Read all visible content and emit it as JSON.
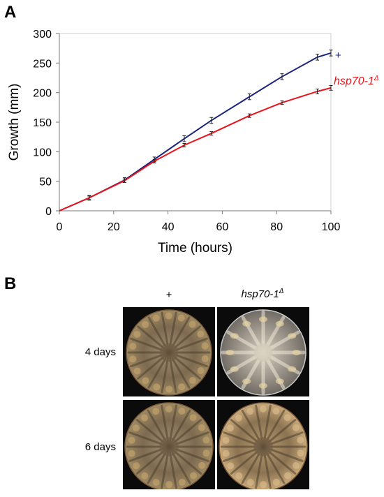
{
  "panels": {
    "a_letter": "A",
    "b_letter": "B"
  },
  "chart_data": {
    "type": "line",
    "title": "",
    "xlabel": "Time (hours)",
    "ylabel": "Growth (mm)",
    "xlim": [
      0,
      100
    ],
    "ylim": [
      0,
      300
    ],
    "xticks": [
      0,
      20,
      40,
      60,
      80,
      100
    ],
    "yticks": [
      0,
      50,
      100,
      150,
      200,
      250,
      300
    ],
    "grid": false,
    "series": [
      {
        "name": "+",
        "color": "#1a237e",
        "x": [
          0,
          11,
          24,
          35,
          46,
          56,
          70,
          82,
          95,
          100
        ],
        "y": [
          0,
          22,
          52,
          87,
          122,
          153,
          193,
          227,
          260,
          267
        ],
        "err": [
          0,
          4,
          4,
          4,
          5,
          5,
          5,
          5,
          5,
          5
        ]
      },
      {
        "name": "hsp70-1",
        "name_suffix": "Δ",
        "color": "#e8141b",
        "x": [
          0,
          11,
          24,
          35,
          46,
          56,
          70,
          82,
          95,
          100
        ],
        "y": [
          0,
          22,
          51,
          84,
          111,
          131,
          161,
          183,
          202,
          208
        ],
        "err": [
          0,
          3,
          3,
          3,
          3,
          3,
          3,
          3,
          4,
          4
        ]
      }
    ],
    "legend_placement": "right, at line ends"
  },
  "panel_b": {
    "columns": [
      {
        "label": "+"
      },
      {
        "label": "hsp70-1",
        "suffix": "Δ"
      }
    ],
    "rows": [
      {
        "label": "4 days"
      },
      {
        "label": "6 days"
      }
    ]
  }
}
